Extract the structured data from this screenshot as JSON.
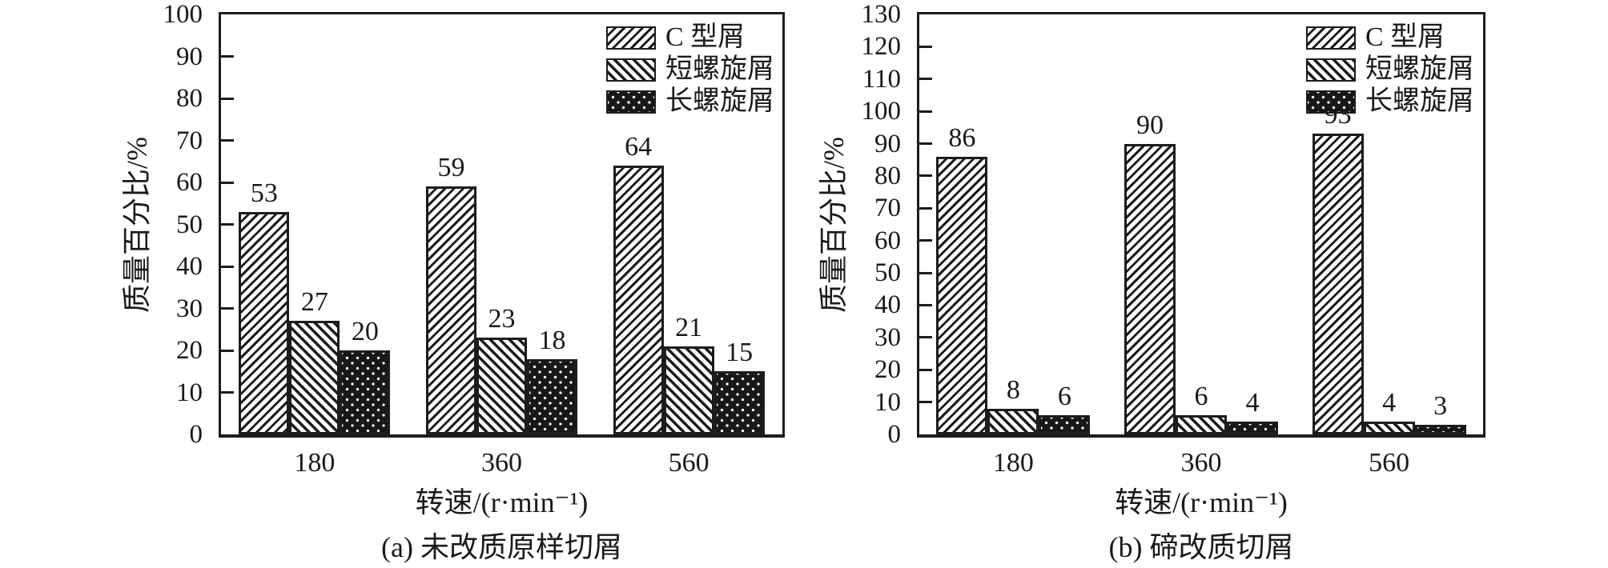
{
  "page": {
    "background_color": "#ffffff",
    "ink_color": "#1a1a1a"
  },
  "chart_data": [
    {
      "id": "a",
      "type": "bar",
      "title_caption": "(a) 未改质原样切屑",
      "xlabel": "转速/(r·min⁻¹)",
      "ylabel": "质量百分比/%",
      "categories": [
        "180",
        "360",
        "560"
      ],
      "series": [
        {
          "name": "C 型屑",
          "pattern": "hatch-forward-diagonal",
          "values": [
            53,
            59,
            64
          ]
        },
        {
          "name": "短螺旋屑",
          "pattern": "hatch-back-diagonal",
          "values": [
            27,
            23,
            21
          ]
        },
        {
          "name": "长螺旋屑",
          "pattern": "dark-dot-grid",
          "values": [
            20,
            18,
            15
          ]
        }
      ],
      "yticks": [
        0,
        10,
        20,
        30,
        40,
        50,
        60,
        70,
        80,
        90,
        100
      ],
      "ylim": [
        0,
        100
      ],
      "ytick_step": 10,
      "grid": false,
      "legend_position": "top-right-inside",
      "bar_value_labels_shown": true
    },
    {
      "id": "b",
      "type": "bar",
      "title_caption": "(b) 碲改质切屑",
      "xlabel": "转速/(r·min⁻¹)",
      "ylabel": "质量百分比/%",
      "categories": [
        "180",
        "360",
        "560"
      ],
      "series": [
        {
          "name": "C 型屑",
          "pattern": "hatch-forward-diagonal",
          "values": [
            86,
            90,
            93
          ]
        },
        {
          "name": "短螺旋屑",
          "pattern": "hatch-back-diagonal",
          "values": [
            8,
            6,
            4
          ]
        },
        {
          "name": "长螺旋屑",
          "pattern": "dark-dot-grid",
          "values": [
            6,
            4,
            3
          ]
        }
      ],
      "yticks": [
        0,
        10,
        20,
        30,
        40,
        50,
        60,
        70,
        80,
        90,
        100,
        110,
        120,
        130
      ],
      "ylim": [
        0,
        130
      ],
      "ytick_step": 10,
      "grid": false,
      "legend_position": "top-right-inside",
      "bar_value_labels_shown": true
    }
  ]
}
